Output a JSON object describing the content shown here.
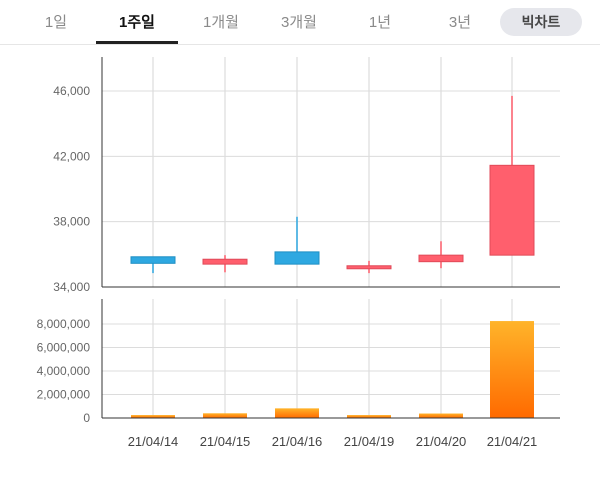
{
  "tabs": [
    {
      "label": "1일",
      "active": false
    },
    {
      "label": "1주일",
      "active": true
    },
    {
      "label": "1개월",
      "active": false
    },
    {
      "label": "3개월",
      "active": false
    },
    {
      "label": "1년",
      "active": false
    },
    {
      "label": "3년",
      "active": false
    }
  ],
  "bitchart_label": "빅차트",
  "chart_data": [
    {
      "type": "candlestick",
      "categories": [
        "21/04/14",
        "21/04/15",
        "21/04/16",
        "21/04/19",
        "21/04/20",
        "21/04/21"
      ],
      "candles": [
        {
          "open": 35850,
          "high": 35850,
          "low": 34850,
          "close": 35450
        },
        {
          "open": 35400,
          "high": 35950,
          "low": 34900,
          "close": 35700
        },
        {
          "open": 36150,
          "high": 38300,
          "low": 35400,
          "close": 35400
        },
        {
          "open": 35150,
          "high": 35600,
          "low": 34850,
          "close": 35300
        },
        {
          "open": 35550,
          "high": 36800,
          "low": 35150,
          "close": 35950
        },
        {
          "open": 35950,
          "high": 45700,
          "low": 35950,
          "close": 41450
        }
      ],
      "yticks": [
        "46,000",
        "42,000",
        "38,000",
        "34,000"
      ],
      "ytick_values": [
        46000,
        42000,
        38000,
        34000
      ],
      "ylim": [
        34000,
        48000
      ],
      "up_color": "#ff5f6d",
      "down_color": "#2ea8e1",
      "grid": true
    },
    {
      "type": "bar",
      "categories": [
        "21/04/14",
        "21/04/15",
        "21/04/16",
        "21/04/19",
        "21/04/20",
        "21/04/21"
      ],
      "values": [
        250000,
        400000,
        820000,
        250000,
        380000,
        8250000
      ],
      "yticks": [
        "8,000,000",
        "6,000,000",
        "4,000,000",
        "2,000,000",
        "0"
      ],
      "ytick_values": [
        8000000,
        6000000,
        4000000,
        2000000,
        0
      ],
      "ylim": [
        0,
        9000000
      ],
      "bar_color_top": "#ffb42a",
      "bar_color_bottom": "#ff6a00",
      "grid": true
    }
  ]
}
